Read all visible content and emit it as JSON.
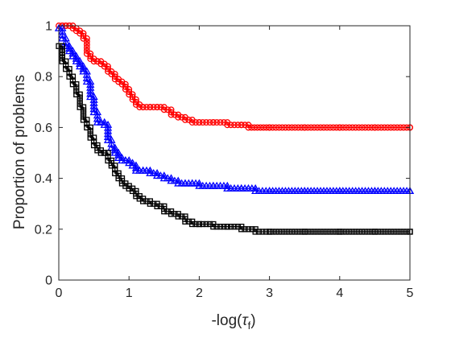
{
  "chart_data": {
    "type": "line",
    "title": "",
    "xlabel": "-log(",
    "xlabel_symbol": "τ",
    "xlabel_subscript": "f",
    "xlabel_close": ")",
    "ylabel": "Proportion of problems",
    "xlim": [
      0,
      5
    ],
    "ylim": [
      0,
      1
    ],
    "xticks": [
      0,
      1,
      2,
      3,
      4,
      5
    ],
    "yticks": [
      0,
      0.2,
      0.4,
      0.6,
      0.8,
      1
    ],
    "xtick_labels": [
      "0",
      "1",
      "2",
      "3",
      "4",
      "5"
    ],
    "ytick_labels": [
      "0",
      "0.2",
      "0.4",
      "0.6",
      "0.8",
      "1"
    ],
    "grid": false,
    "box": true,
    "series": [
      {
        "marker": "circle",
        "color": "#ff0000",
        "x": [
          0,
          0.05,
          0.1,
          0.15,
          0.2,
          0.25,
          0.3,
          0.35,
          0.4,
          0.45,
          0.5,
          0.55,
          0.6,
          0.65,
          0.7,
          0.75,
          0.8,
          0.85,
          0.9,
          0.95,
          1.0,
          1.05,
          1.1,
          1.15,
          1.2,
          1.3,
          1.4,
          1.5,
          1.6,
          1.7,
          1.8,
          1.9,
          2.0,
          2.2,
          2.4,
          2.6,
          2.7,
          3.0,
          3.5,
          4.0,
          4.5,
          5.0
        ],
        "y": [
          1.0,
          1.0,
          1.0,
          1.0,
          0.99,
          0.98,
          0.97,
          0.95,
          0.89,
          0.87,
          0.86,
          0.86,
          0.85,
          0.84,
          0.82,
          0.81,
          0.79,
          0.78,
          0.77,
          0.75,
          0.73,
          0.71,
          0.69,
          0.68,
          0.68,
          0.68,
          0.68,
          0.67,
          0.65,
          0.64,
          0.63,
          0.62,
          0.62,
          0.62,
          0.61,
          0.61,
          0.6,
          0.6,
          0.6,
          0.6,
          0.6,
          0.6
        ]
      },
      {
        "marker": "triangle",
        "color": "#0000ff",
        "x": [
          0,
          0.05,
          0.1,
          0.15,
          0.2,
          0.25,
          0.3,
          0.35,
          0.4,
          0.45,
          0.5,
          0.55,
          0.6,
          0.65,
          0.7,
          0.75,
          0.8,
          0.85,
          0.9,
          0.95,
          1.0,
          1.05,
          1.1,
          1.2,
          1.3,
          1.4,
          1.5,
          1.6,
          1.7,
          1.8,
          1.9,
          2.0,
          2.2,
          2.4,
          2.6,
          2.8,
          3.0,
          3.5,
          4.0,
          4.5,
          5.0
        ],
        "y": [
          0.99,
          0.95,
          0.92,
          0.9,
          0.88,
          0.86,
          0.84,
          0.82,
          0.78,
          0.72,
          0.66,
          0.62,
          0.62,
          0.61,
          0.55,
          0.52,
          0.5,
          0.48,
          0.47,
          0.47,
          0.46,
          0.45,
          0.43,
          0.43,
          0.42,
          0.41,
          0.4,
          0.39,
          0.38,
          0.38,
          0.38,
          0.37,
          0.37,
          0.36,
          0.36,
          0.35,
          0.35,
          0.35,
          0.35,
          0.35,
          0.35
        ]
      },
      {
        "marker": "square",
        "color": "#000000",
        "x": [
          0,
          0.05,
          0.1,
          0.15,
          0.2,
          0.25,
          0.3,
          0.35,
          0.4,
          0.45,
          0.5,
          0.55,
          0.6,
          0.65,
          0.7,
          0.75,
          0.8,
          0.85,
          0.9,
          0.95,
          1.0,
          1.05,
          1.1,
          1.15,
          1.2,
          1.3,
          1.4,
          1.5,
          1.6,
          1.7,
          1.8,
          1.9,
          2.0,
          2.2,
          2.4,
          2.6,
          2.8,
          3.0,
          3.5,
          4.0,
          4.5,
          5.0
        ],
        "y": [
          0.92,
          0.86,
          0.83,
          0.8,
          0.77,
          0.73,
          0.68,
          0.63,
          0.6,
          0.56,
          0.53,
          0.51,
          0.5,
          0.5,
          0.47,
          0.45,
          0.42,
          0.4,
          0.38,
          0.37,
          0.36,
          0.35,
          0.33,
          0.32,
          0.31,
          0.3,
          0.29,
          0.27,
          0.26,
          0.25,
          0.23,
          0.22,
          0.22,
          0.21,
          0.21,
          0.2,
          0.19,
          0.19,
          0.19,
          0.19,
          0.19,
          0.19
        ]
      }
    ]
  }
}
